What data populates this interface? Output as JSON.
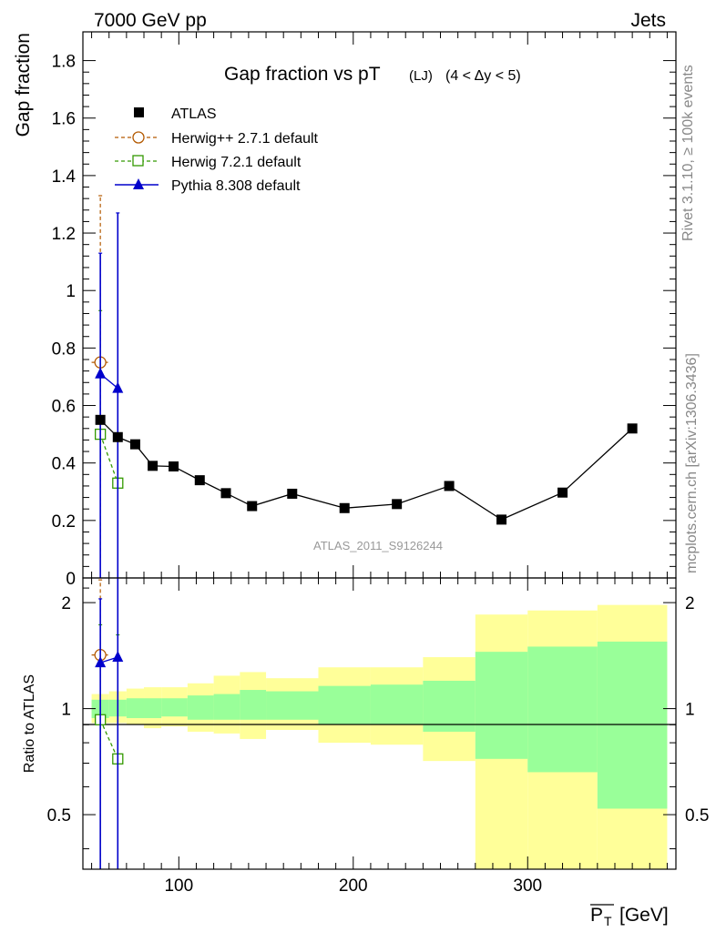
{
  "header": {
    "left": "7000 GeV pp",
    "right": "Jets"
  },
  "side_text": {
    "rivet": "Rivet 3.1.10, ≥ 100k events",
    "mcplots": "mcplots.cern.ch [arXiv:1306.3436]"
  },
  "analysis_id": "ATLAS_2011_S9126244",
  "chart_data": [
    {
      "type": "scatter",
      "title": "Gap fraction vs pT",
      "title_sub": "(LJ)",
      "title_range": "(4 < Δy < 5)",
      "ylabel": "Gap fraction",
      "xlim": [
        45,
        385
      ],
      "ylim": [
        0,
        1.9
      ],
      "yticks": [
        0,
        0.2,
        0.4,
        0.6,
        0.8,
        1,
        1.2,
        1.4,
        1.6,
        1.8
      ],
      "ytick_labels": [
        "0",
        "0.2",
        "0.4",
        "0.6",
        "0.8",
        "1",
        "1.2",
        "1.4",
        "1.6",
        "1.8"
      ],
      "legend_position": "top-left",
      "series": [
        {
          "name": "ATLAS",
          "color": "#000000",
          "marker": "square-filled",
          "x": [
            55,
            65,
            75,
            85,
            97,
            112,
            127,
            142,
            165,
            195,
            225,
            255,
            285,
            320,
            360
          ],
          "y": [
            0.55,
            0.49,
            0.465,
            0.39,
            0.388,
            0.34,
            0.295,
            0.25,
            0.293,
            0.243,
            0.257,
            0.32,
            0.203,
            0.297,
            0.52
          ]
        },
        {
          "name": "Herwig++ 2.7.1 default",
          "color": "#b35900",
          "marker": "circle-open",
          "dashed": true,
          "x": [
            55
          ],
          "y": [
            0.75
          ],
          "yerr_lo": [
            0.68
          ],
          "yerr_hi": [
            0.58
          ],
          "xerr": 5
        },
        {
          "name": "Herwig 7.2.1 default",
          "color": "#339900",
          "marker": "square-open",
          "dashed": true,
          "x": [
            55,
            65
          ],
          "y": [
            0.5,
            0.33
          ],
          "yerr_lo": [
            0.43,
            0.33
          ],
          "yerr_hi": [
            0.43,
            0.33
          ]
        },
        {
          "name": "Pythia 8.308 default",
          "color": "#0000cc",
          "marker": "triangle-filled",
          "x": [
            55,
            65
          ],
          "y": [
            0.71,
            0.66
          ],
          "yerr_lo": [
            0.71,
            0.66
          ],
          "yerr_hi": [
            0.42,
            0.61
          ]
        }
      ]
    },
    {
      "type": "ratio",
      "ylabel": "Ratio to ATLAS",
      "xlabel": "P_T [GeV]",
      "xlim": [
        45,
        385
      ],
      "ylim": [
        0.35,
        2.35
      ],
      "log_y": true,
      "yticks": [
        0.5,
        1,
        2
      ],
      "ytick_labels": [
        "0.5",
        "1",
        "2"
      ],
      "xticks": [
        100,
        200,
        300
      ],
      "xtick_labels": [
        "100",
        "200",
        "300"
      ],
      "bands": {
        "edges": [
          50,
          60,
          70,
          80,
          90,
          105,
          120,
          135,
          150,
          180,
          210,
          240,
          270,
          300,
          340,
          380
        ],
        "stat_lo": [
          0.94,
          0.95,
          0.94,
          0.94,
          0.95,
          0.93,
          0.93,
          0.93,
          0.93,
          0.9,
          0.9,
          0.86,
          0.72,
          0.66,
          0.52
        ],
        "stat_hi": [
          1.06,
          1.06,
          1.07,
          1.07,
          1.07,
          1.09,
          1.1,
          1.13,
          1.12,
          1.16,
          1.17,
          1.2,
          1.45,
          1.5,
          1.55
        ],
        "tot_lo": [
          0.91,
          0.91,
          0.9,
          0.88,
          0.89,
          0.86,
          0.85,
          0.82,
          0.87,
          0.8,
          0.79,
          0.71,
          0.33,
          0.33,
          0.33
        ],
        "tot_hi": [
          1.1,
          1.12,
          1.14,
          1.15,
          1.15,
          1.18,
          1.24,
          1.27,
          1.22,
          1.31,
          1.31,
          1.4,
          1.85,
          1.9,
          1.97
        ],
        "stat_color": "#99ff99",
        "tot_color": "#ffff99"
      },
      "series": [
        {
          "name": "Herwig++ 2.7.1 default",
          "color": "#b35900",
          "marker": "circle-open",
          "dashed": true,
          "x": [
            55
          ],
          "y": [
            1.42
          ],
          "yerr_lo": [
            1.0
          ],
          "yerr_hi": [
            0.9
          ],
          "xerr": 5
        },
        {
          "name": "Herwig 7.2.1 default",
          "color": "#339900",
          "marker": "square-open",
          "dashed": true,
          "x": [
            55,
            65
          ],
          "y": [
            0.93,
            0.72
          ],
          "yerr_lo": [
            0.8,
            0.6
          ],
          "yerr_hi": [
            0.8,
            0.9
          ]
        },
        {
          "name": "Pythia 8.308 default",
          "color": "#0000cc",
          "marker": "triangle-filled",
          "x": [
            55,
            65
          ],
          "y": [
            1.35,
            1.4
          ],
          "yerr_lo": [
            1.2,
            1.2
          ],
          "yerr_hi": [
            0.7,
            1.5
          ]
        }
      ]
    }
  ]
}
